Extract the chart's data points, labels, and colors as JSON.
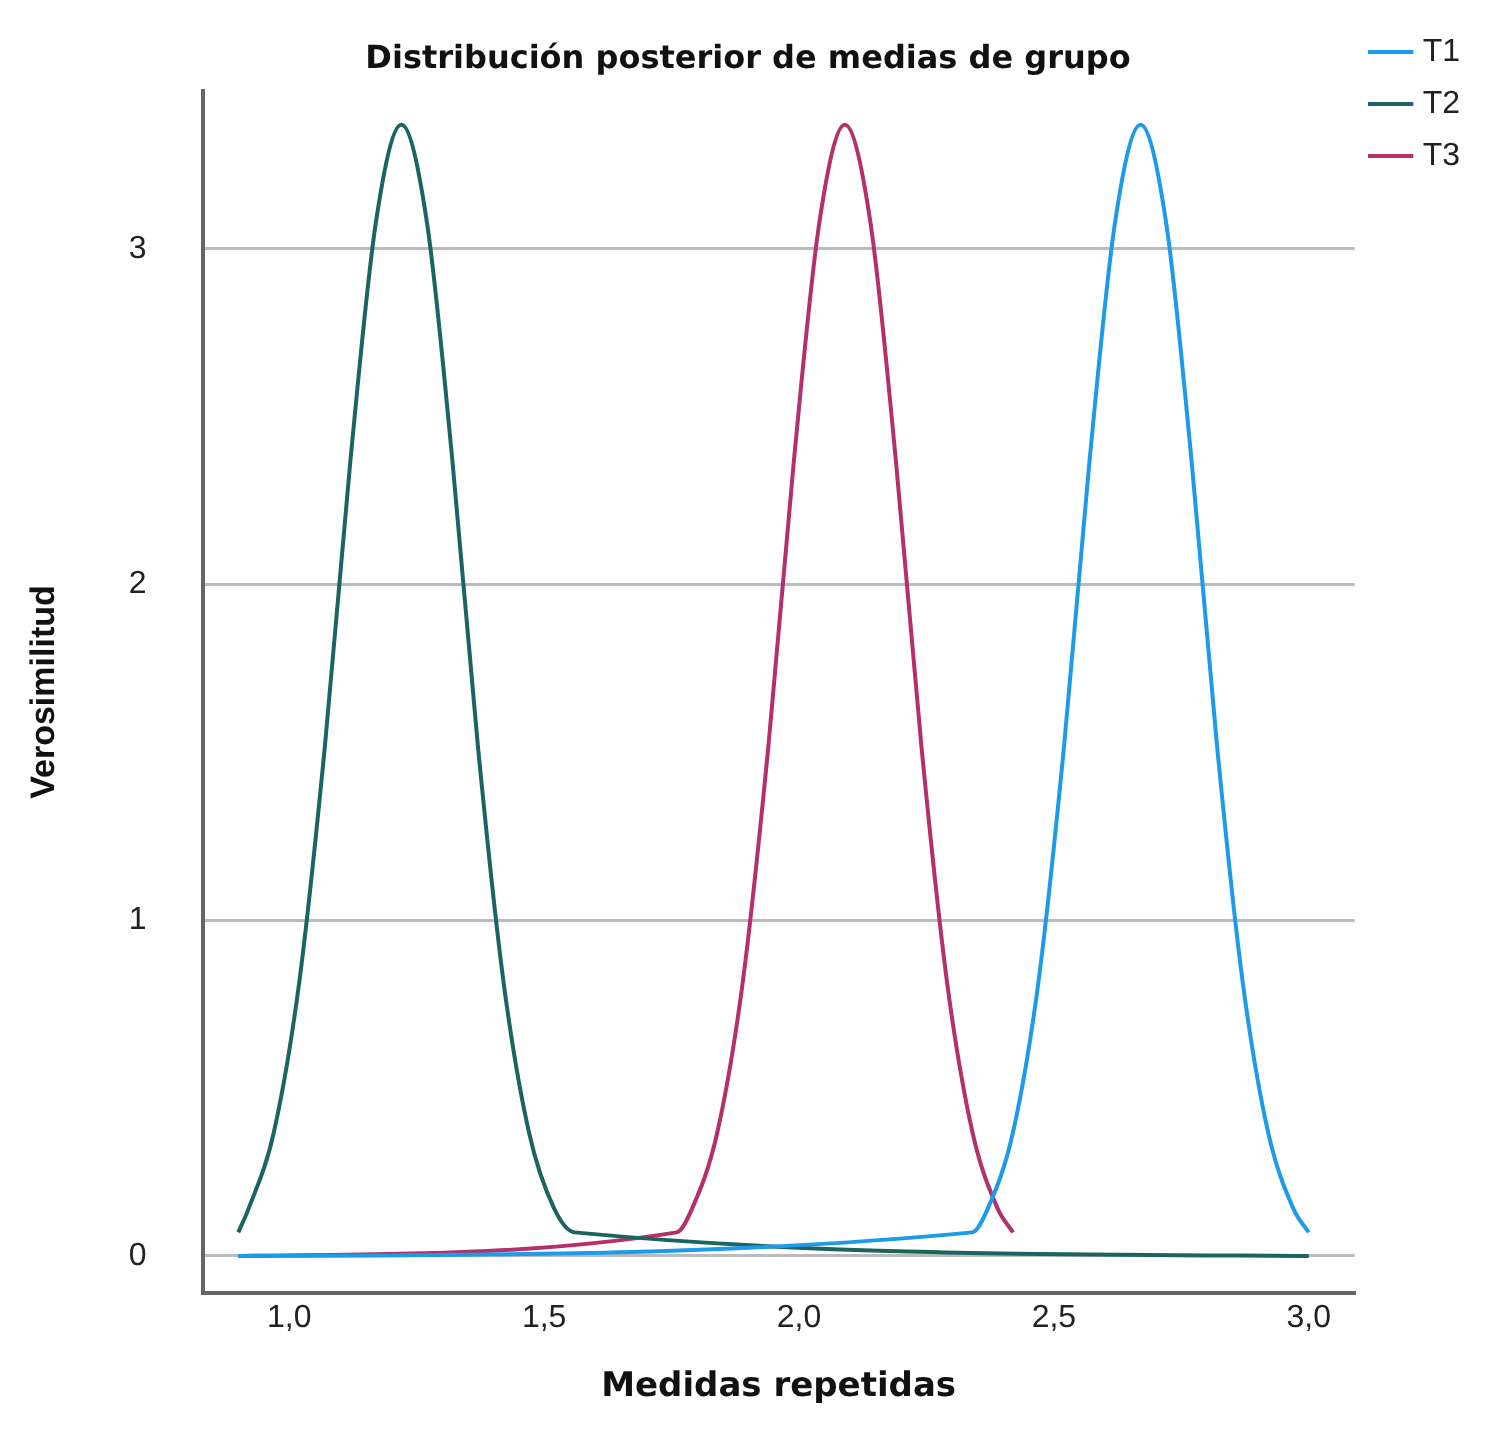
{
  "chart_data": {
    "type": "line",
    "title": "Distribución posterior de medias de grupo",
    "xlabel": "Medidas repetidas",
    "ylabel": "Verosimilitud",
    "xlim": [
      0.83,
      3.09
    ],
    "xticks": [
      {
        "value": 1,
        "label": "1,0"
      },
      {
        "value": 1.5,
        "label": "1,5"
      },
      {
        "value": 2,
        "label": "2,0"
      },
      {
        "value": 2.5,
        "label": "2,5"
      },
      {
        "value": 3,
        "label": "3,0"
      }
    ],
    "ylim": [
      -0.11,
      3.47
    ],
    "yticks": [
      0,
      1,
      2,
      3
    ],
    "grid": "y",
    "legend": "top right",
    "marker": "none",
    "line_style": "solid",
    "series": [
      {
        "name": "T1",
        "color": "#1e9be8",
        "x": [
          0.9,
          2.34,
          2.37,
          2.42,
          2.47,
          2.52,
          2.57,
          2.62,
          2.67,
          2.72,
          2.77,
          2.82,
          2.87,
          2.92,
          2.97,
          3.0
        ],
        "values": [
          0,
          0.07,
          0.14,
          0.37,
          0.82,
          1.52,
          2.37,
          3.08,
          3.37,
          3.08,
          2.37,
          1.52,
          0.82,
          0.37,
          0.14,
          0.07
        ]
      },
      {
        "name": "T2",
        "color": "#1b6460",
        "x": [
          0.9,
          0.92,
          0.97,
          1.02,
          1.07,
          1.12,
          1.17,
          1.22,
          1.27,
          1.32,
          1.37,
          1.42,
          1.47,
          1.52,
          1.56,
          3.0
        ],
        "values": [
          0.07,
          0.14,
          0.37,
          0.82,
          1.52,
          2.37,
          3.08,
          3.37,
          3.08,
          2.37,
          1.52,
          0.82,
          0.37,
          0.14,
          0.07,
          0
        ]
      },
      {
        "name": "T3",
        "color": "#b3306b",
        "x": [
          0.9,
          1.76,
          1.79,
          1.84,
          1.89,
          1.94,
          1.99,
          2.04,
          2.09,
          2.14,
          2.19,
          2.24,
          2.29,
          2.34,
          2.39,
          2.42
        ],
        "values": [
          0,
          0.07,
          0.14,
          0.37,
          0.82,
          1.52,
          2.37,
          3.08,
          3.37,
          3.08,
          2.37,
          1.52,
          0.82,
          0.37,
          0.14,
          0.07
        ]
      }
    ]
  }
}
